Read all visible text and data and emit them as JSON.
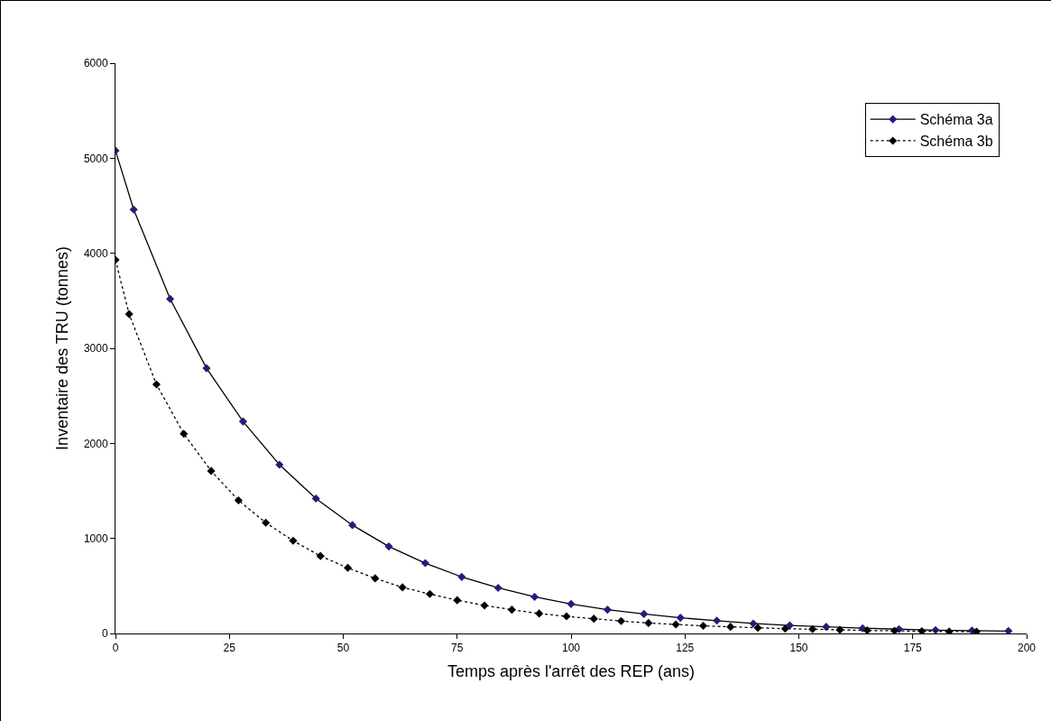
{
  "chart_data": {
    "type": "line",
    "xlabel": "Temps après l'arrêt des REP (ans)",
    "ylabel": "Inventaire des TRU (tonnes)",
    "xlim": [
      0,
      200
    ],
    "xticks": [
      0,
      25,
      50,
      75,
      100,
      125,
      150,
      175,
      200
    ],
    "ylim": [
      0,
      6000
    ],
    "yticks": [
      0,
      1000,
      2000,
      3000,
      4000,
      5000,
      6000
    ],
    "grid": false,
    "legend": "top right",
    "marker": "diamond",
    "series": [
      {
        "name": "Schéma 3a",
        "color": "#1f1f7a",
        "line_style": "solid",
        "x": [
          0,
          4,
          12,
          20,
          28,
          36,
          44,
          52,
          60,
          68,
          76,
          84,
          92,
          100,
          108,
          116,
          124,
          132,
          140,
          148,
          156,
          164,
          172,
          180,
          188,
          196
        ],
        "values": [
          5080,
          4460,
          3520,
          2790,
          2230,
          1775,
          1420,
          1140,
          915,
          740,
          595,
          480,
          385,
          310,
          250,
          205,
          165,
          135,
          105,
          85,
          70,
          55,
          45,
          35,
          30,
          25
        ]
      },
      {
        "name": "Schéma 3b",
        "color": "#000000",
        "line_style": "dotted",
        "x": [
          0,
          3,
          9,
          15,
          21,
          27,
          33,
          39,
          45,
          51,
          57,
          63,
          69,
          75,
          81,
          87,
          93,
          99,
          105,
          111,
          117,
          123,
          129,
          135,
          141,
          147,
          153,
          159,
          165,
          171,
          177,
          183,
          189
        ],
        "values": [
          3930,
          3360,
          2620,
          2100,
          1710,
          1400,
          1165,
          975,
          815,
          690,
          580,
          485,
          415,
          350,
          295,
          250,
          210,
          180,
          155,
          130,
          110,
          95,
          80,
          70,
          60,
          50,
          45,
          38,
          32,
          28,
          24,
          20,
          18
        ]
      }
    ]
  }
}
